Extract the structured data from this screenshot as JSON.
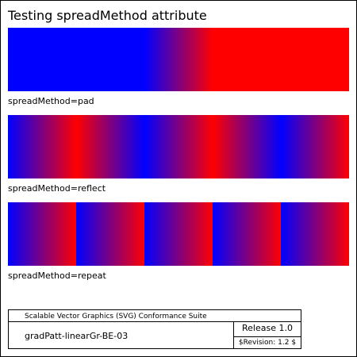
{
  "page": {
    "title": "Testing spreadMethod attribute"
  },
  "gradients": [
    {
      "label": "spreadMethod=pad",
      "spread": "pad",
      "start_color": "#0000ff",
      "end_color": "#ff0000"
    },
    {
      "label": "spreadMethod=reflect",
      "spread": "reflect",
      "start_color": "#0000ff",
      "end_color": "#ff0000"
    },
    {
      "label": "spreadMethod=repeat",
      "spread": "repeat",
      "start_color": "#0000ff",
      "end_color": "#ff0000"
    }
  ],
  "legend": {
    "suite": "Scalable Vector Graphics (SVG) Conformance Suite",
    "test_name": "gradPatt-linearGr-BE-03",
    "release": "Release 1.0",
    "revision": "$Revision: 1.2 $"
  }
}
